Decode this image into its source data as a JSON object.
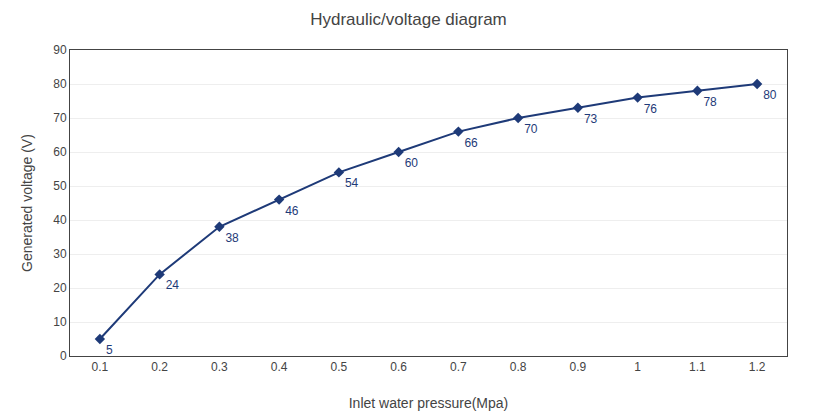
{
  "chart_data": {
    "type": "line",
    "title": "Hydraulic/voltage diagram",
    "xlabel": "Inlet water pressure(Mpa)",
    "ylabel": "Generated voltage (V)",
    "x": [
      0.1,
      0.2,
      0.3,
      0.4,
      0.5,
      0.6,
      0.7,
      0.8,
      0.9,
      1.0,
      1.1,
      1.2
    ],
    "values": [
      5,
      24,
      38,
      46,
      54,
      60,
      66,
      70,
      73,
      76,
      78,
      80
    ],
    "color": "#1e3a78",
    "marker": "diamond",
    "data_labels": true,
    "xlim": [
      0.05,
      1.25
    ],
    "xticks": [
      0.1,
      0.2,
      0.3,
      0.4,
      0.5,
      0.6,
      0.7,
      0.8,
      0.9,
      1,
      1.1,
      1.2
    ],
    "ylim": [
      0,
      90
    ],
    "yticks": [
      0,
      10,
      20,
      30,
      40,
      50,
      60,
      70,
      80,
      90
    ],
    "grid": "y"
  }
}
